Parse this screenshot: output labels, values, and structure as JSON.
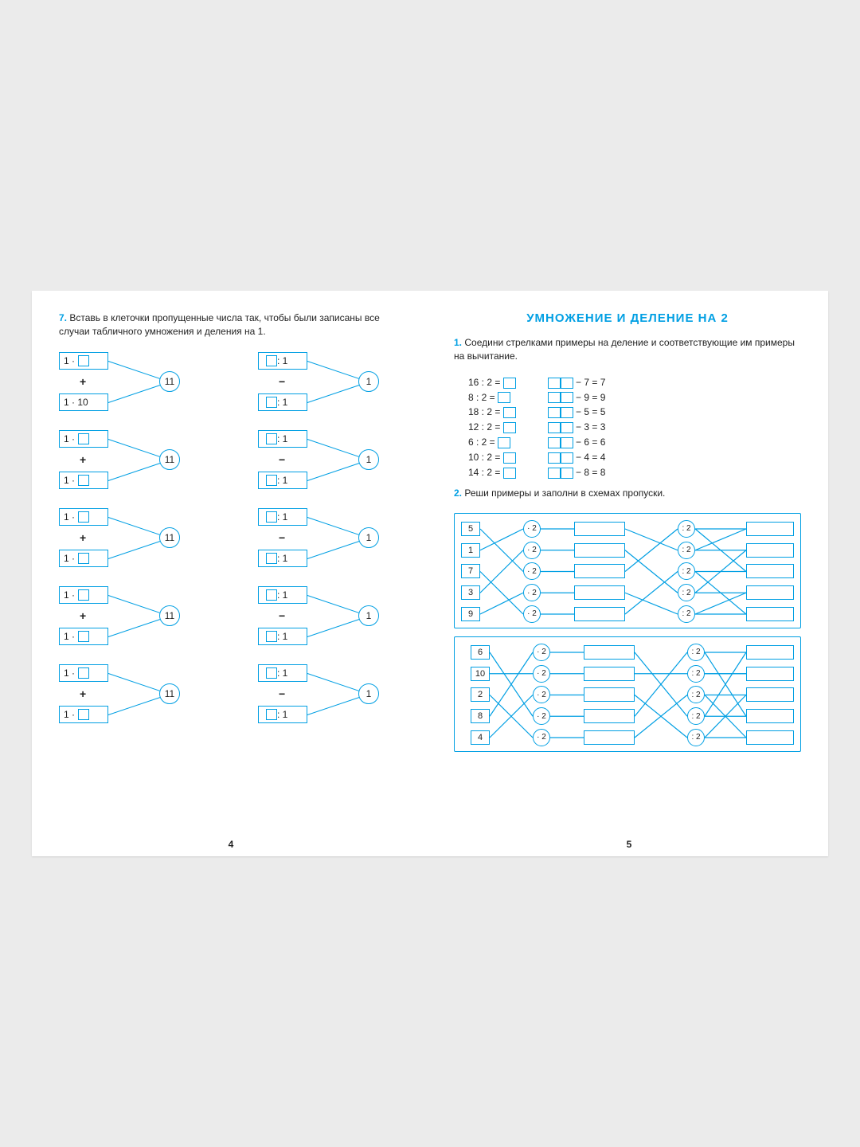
{
  "colors": {
    "accent": "#009fe3",
    "text": "#222222",
    "page_bg": "#ffffff",
    "stage_bg": "#ebebeb"
  },
  "left": {
    "task_num": "7.",
    "task_text": "Вставь в клеточки пропущенные числа так, чтобы были записаны все случаи табличного умножения и деления на 1.",
    "groups_left": [
      {
        "top": "1 ·",
        "top_has_box": true,
        "bot": "1 · 10",
        "bot_has_box": false,
        "op": "+",
        "result": "11"
      },
      {
        "top": "1 ·",
        "top_has_box": true,
        "bot": "1 ·",
        "bot_has_box": true,
        "op": "+",
        "result": "11"
      },
      {
        "top": "1 ·",
        "top_has_box": true,
        "bot": "1 ·",
        "bot_has_box": true,
        "op": "+",
        "result": "11"
      },
      {
        "top": "1 ·",
        "top_has_box": true,
        "bot": "1 ·",
        "bot_has_box": true,
        "op": "+",
        "result": "11"
      },
      {
        "top": "1 ·",
        "top_has_box": true,
        "bot": "1 ·",
        "bot_has_box": true,
        "op": "+",
        "result": "11"
      }
    ],
    "groups_right": [
      {
        "top": ": 1",
        "top_pre_box": true,
        "bot": ": 1",
        "bot_pre_box": true,
        "op": "−",
        "result": "1"
      },
      {
        "top": ": 1",
        "top_pre_box": true,
        "bot": ": 1",
        "bot_pre_box": true,
        "op": "−",
        "result": "1"
      },
      {
        "top": ": 1",
        "top_pre_box": true,
        "bot": ": 1",
        "bot_pre_box": true,
        "op": "−",
        "result": "1"
      },
      {
        "top": ": 1",
        "top_pre_box": true,
        "bot": ": 1",
        "bot_pre_box": true,
        "op": "−",
        "result": "1"
      },
      {
        "top": ": 1",
        "top_pre_box": true,
        "bot": ": 1",
        "bot_pre_box": true,
        "op": "−",
        "result": "1"
      }
    ],
    "page_num": "4"
  },
  "right": {
    "title": "УМНОЖЕНИЕ  И  ДЕЛЕНИЕ  НА  2",
    "task1_num": "1.",
    "task1_text": "Соедини стрелками примеры на деление и соответствующие им примеры на вычитание.",
    "division": [
      "16 : 2 =",
      "8 : 2 =",
      "18 : 2 =",
      "12 : 2 =",
      "6 : 2 =",
      "10 : 2 =",
      "14 : 2 ="
    ],
    "subtraction": [
      "− 7 = 7",
      "− 9 = 9",
      "− 5 = 5",
      "− 3 = 3",
      "− 6 = 6",
      "− 4 = 4",
      "− 8 = 8"
    ],
    "task2_num": "2.",
    "task2_text": "Реши примеры и заполни в схемах пропуски.",
    "scheme1": {
      "inputs": [
        "5",
        "1",
        "7",
        "3",
        "9"
      ],
      "op1": "· 2",
      "op2": ": 2",
      "in_to_op": [
        [
          0,
          2
        ],
        [
          1,
          0
        ],
        [
          2,
          4
        ],
        [
          3,
          1
        ],
        [
          4,
          3
        ]
      ]
    },
    "scheme2": {
      "inputs": [
        "6",
        "10",
        "2",
        "8",
        "4"
      ],
      "op1": "· 2",
      "op2": ": 2",
      "in_to_op": [
        [
          0,
          3
        ],
        [
          1,
          1
        ],
        [
          2,
          4
        ],
        [
          3,
          0
        ],
        [
          4,
          2
        ]
      ]
    },
    "page_num": "5"
  }
}
